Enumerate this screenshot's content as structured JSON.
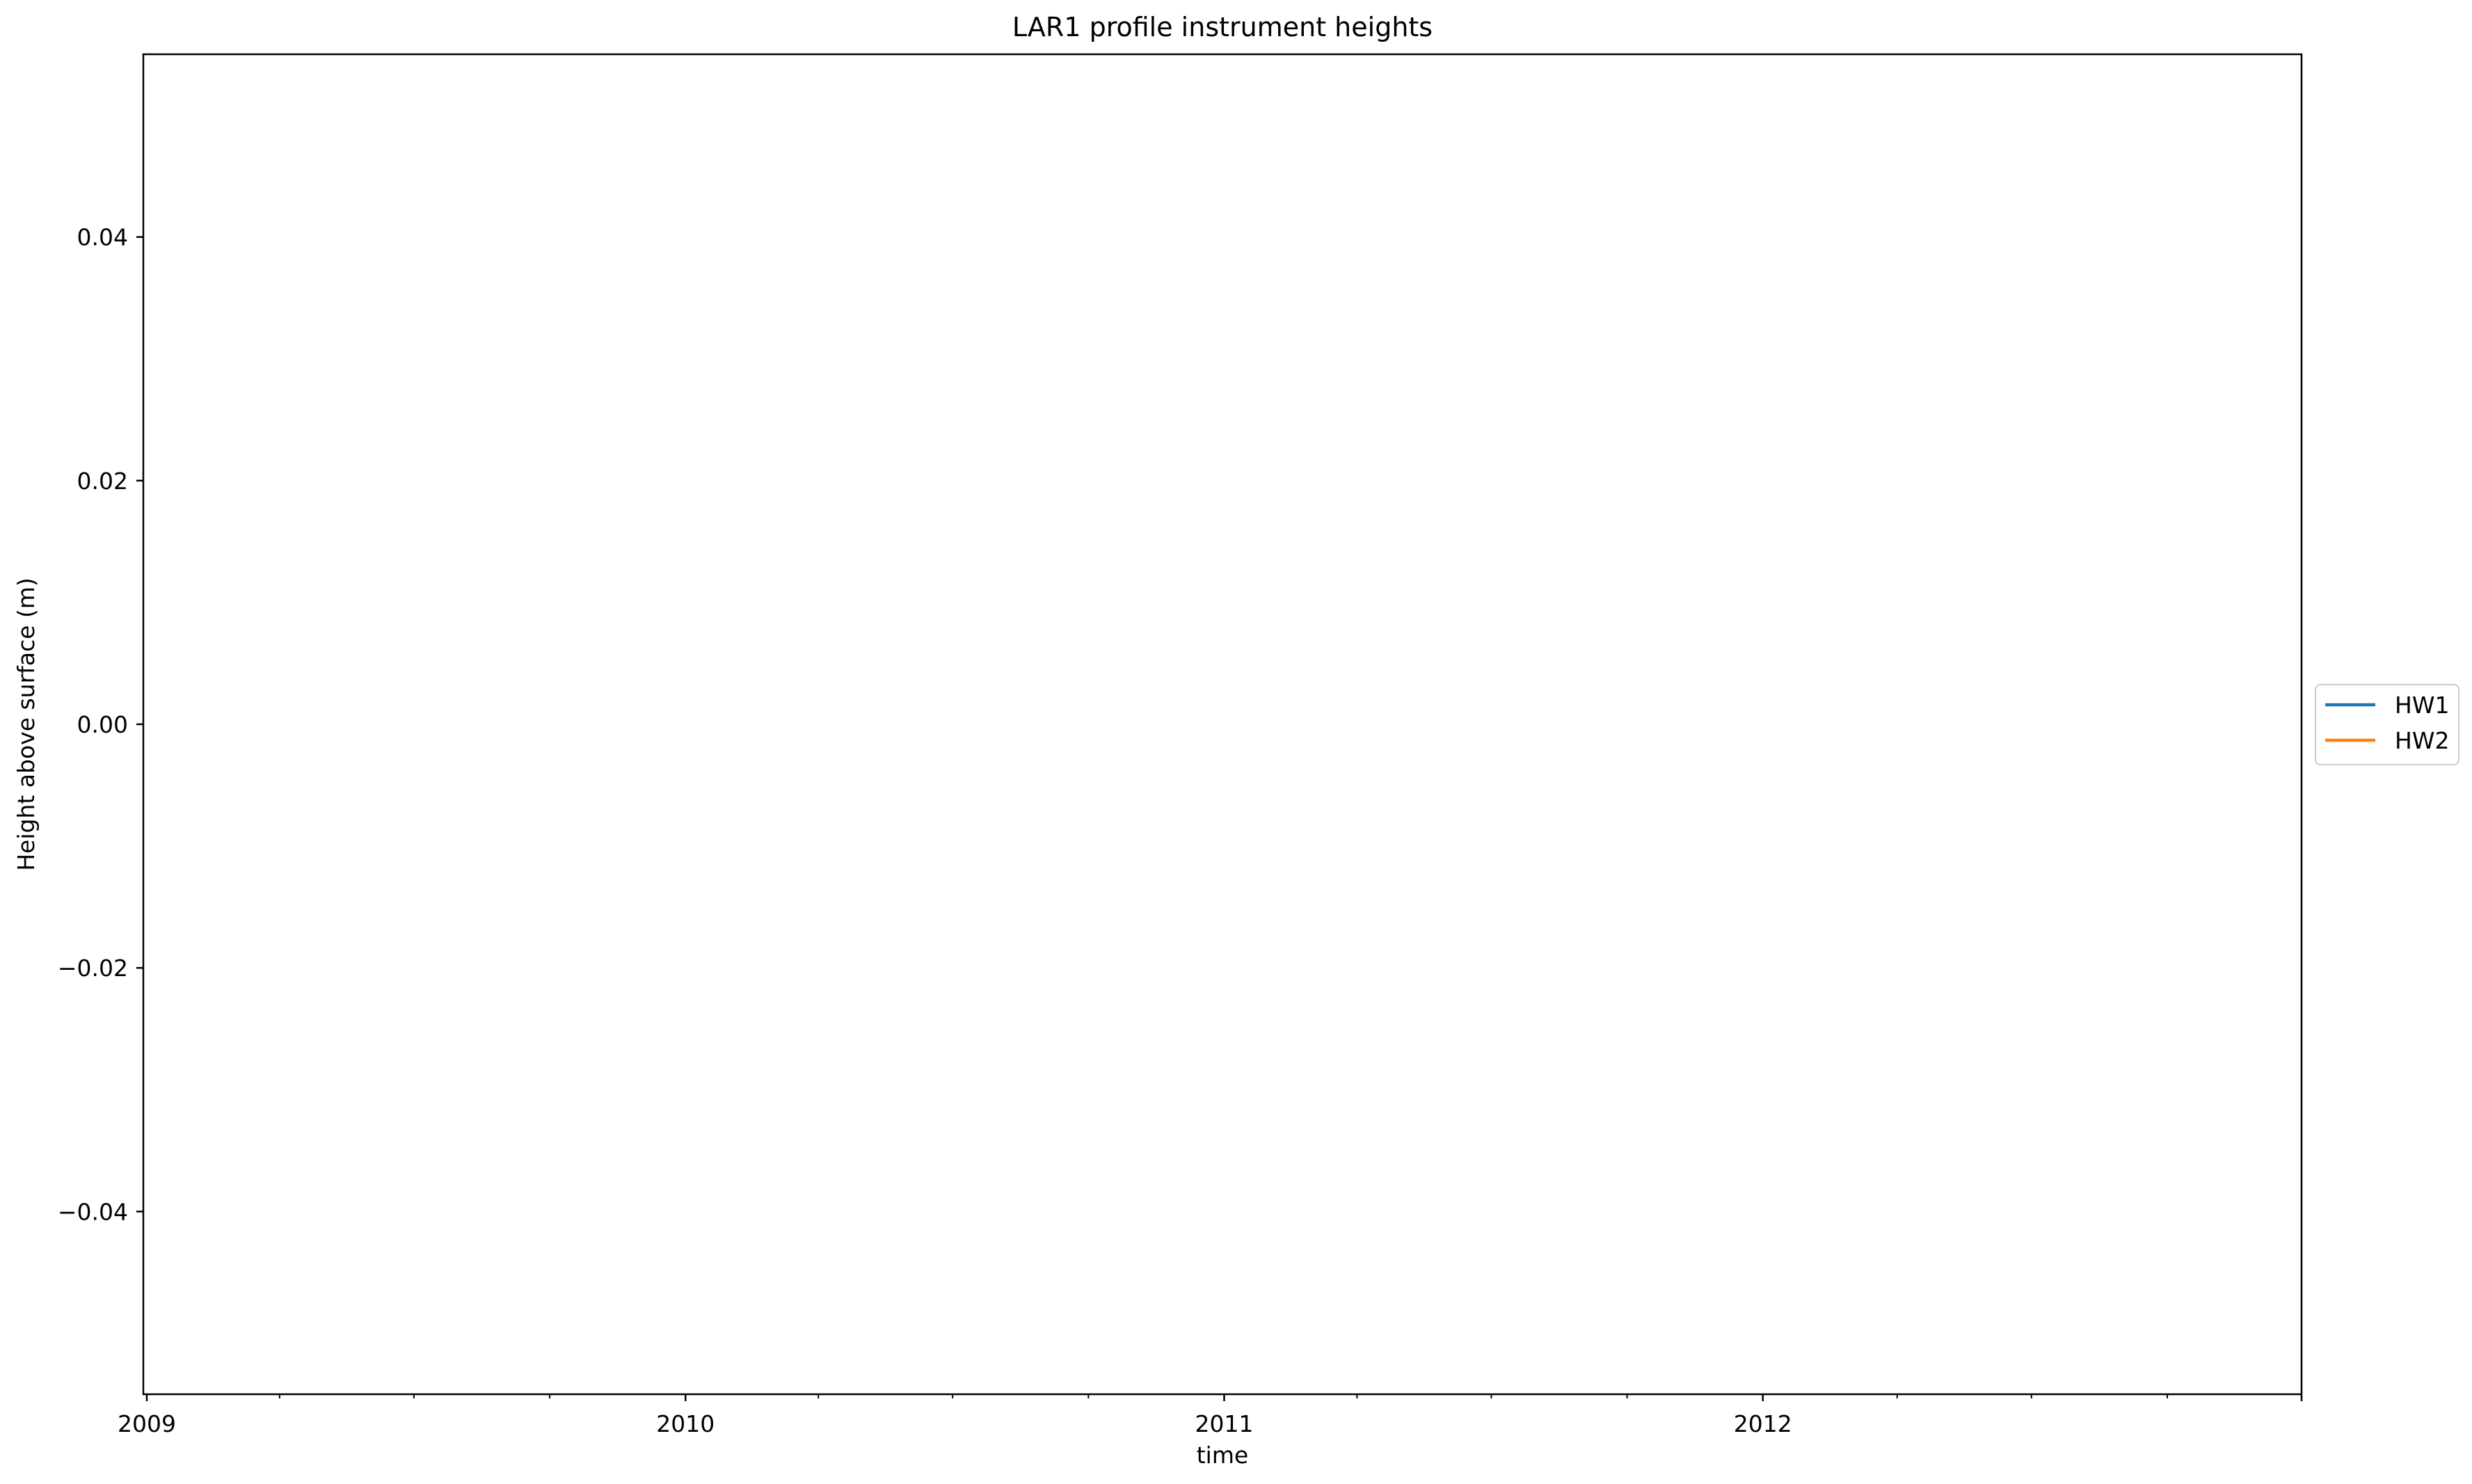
{
  "chart_data": {
    "type": "line",
    "title": "LAR1 profile instrument heights",
    "xlabel": "time",
    "ylabel": "Height above surface (m)",
    "x_axis": {
      "scale": "date",
      "range": [
        "2009-01-01",
        "2012-12-31"
      ],
      "tick_labels": [
        "2009",
        "2010",
        "2011",
        "2012"
      ],
      "minor_ticks": "quarterly"
    },
    "y_axis": {
      "range": [
        -0.055,
        0.055
      ],
      "ticks": [
        -0.04,
        -0.02,
        0.0,
        0.02,
        0.04
      ],
      "tick_labels": [
        "−0.04",
        "−0.02",
        "0.00",
        "0.02",
        "0.04"
      ]
    },
    "grid": false,
    "legend": {
      "placement": "outside-right",
      "entries": [
        {
          "label": "HW1",
          "color": "#1f77b4"
        },
        {
          "label": "HW2",
          "color": "#ff7f0e"
        }
      ]
    },
    "series": [
      {
        "name": "HW1",
        "color": "#1f77b4",
        "x": [],
        "values": []
      },
      {
        "name": "HW2",
        "color": "#ff7f0e",
        "x": [],
        "values": []
      }
    ]
  }
}
